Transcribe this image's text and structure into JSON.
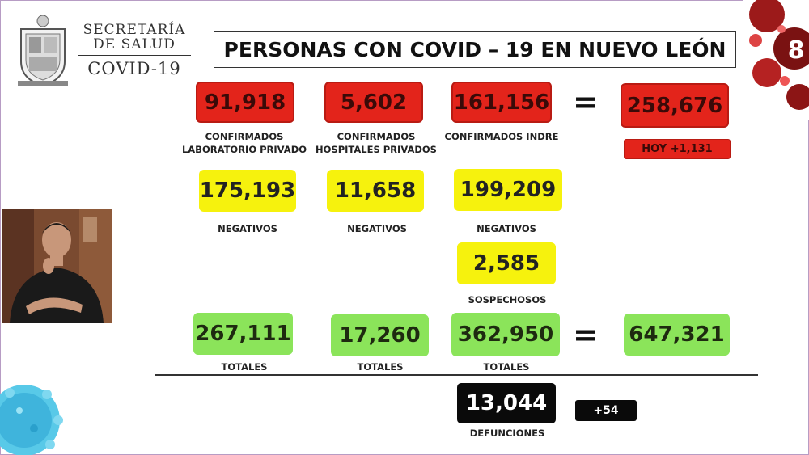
{
  "logo": {
    "line1": "SECRETARÍA",
    "line2": "DE SALUD",
    "line3": "COVID-19"
  },
  "title": "PERSONAS CON COVID – 19 EN NUEVO LEÓN",
  "channel_mark": "8",
  "confirmados": {
    "privado_lab": {
      "value": "91,918",
      "label1": "CONFIRMADOS",
      "label2": "LABORATORIO PRIVADO"
    },
    "hospitales_privados": {
      "value": "5,602",
      "label1": "CONFIRMADOS",
      "label2": "HOSPITALES PRIVADOS"
    },
    "indre": {
      "value": "161,156",
      "label1": "CONFIRMADOS INDRE"
    },
    "equals": "=",
    "total": {
      "value": "258,676"
    },
    "today": "HOY +1,131"
  },
  "negativos": {
    "privado_lab": {
      "value": "175,193",
      "label": "NEGATIVOS"
    },
    "hospitales_privados": {
      "value": "11,658",
      "label": "NEGATIVOS"
    },
    "indre": {
      "value": "199,209",
      "label": "NEGATIVOS"
    }
  },
  "sospechosos": {
    "value": "2,585",
    "label": "SOSPECHOSOS"
  },
  "totales": {
    "privado_lab": {
      "value": "267,111",
      "label": "TOTALES"
    },
    "hospitales_privados": {
      "value": "17,260",
      "label": "TOTALES"
    },
    "indre": {
      "value": "362,950",
      "label": "TOTALES"
    },
    "equals": "=",
    "grand_total": {
      "value": "647,321"
    }
  },
  "defunciones": {
    "value": "13,044",
    "label": "DEFUNCIONES",
    "increase": "+54"
  },
  "colors": {
    "red": "#e3241b",
    "yellow": "#f6f20d",
    "green": "#8be45a",
    "black": "#0a0a0a"
  }
}
